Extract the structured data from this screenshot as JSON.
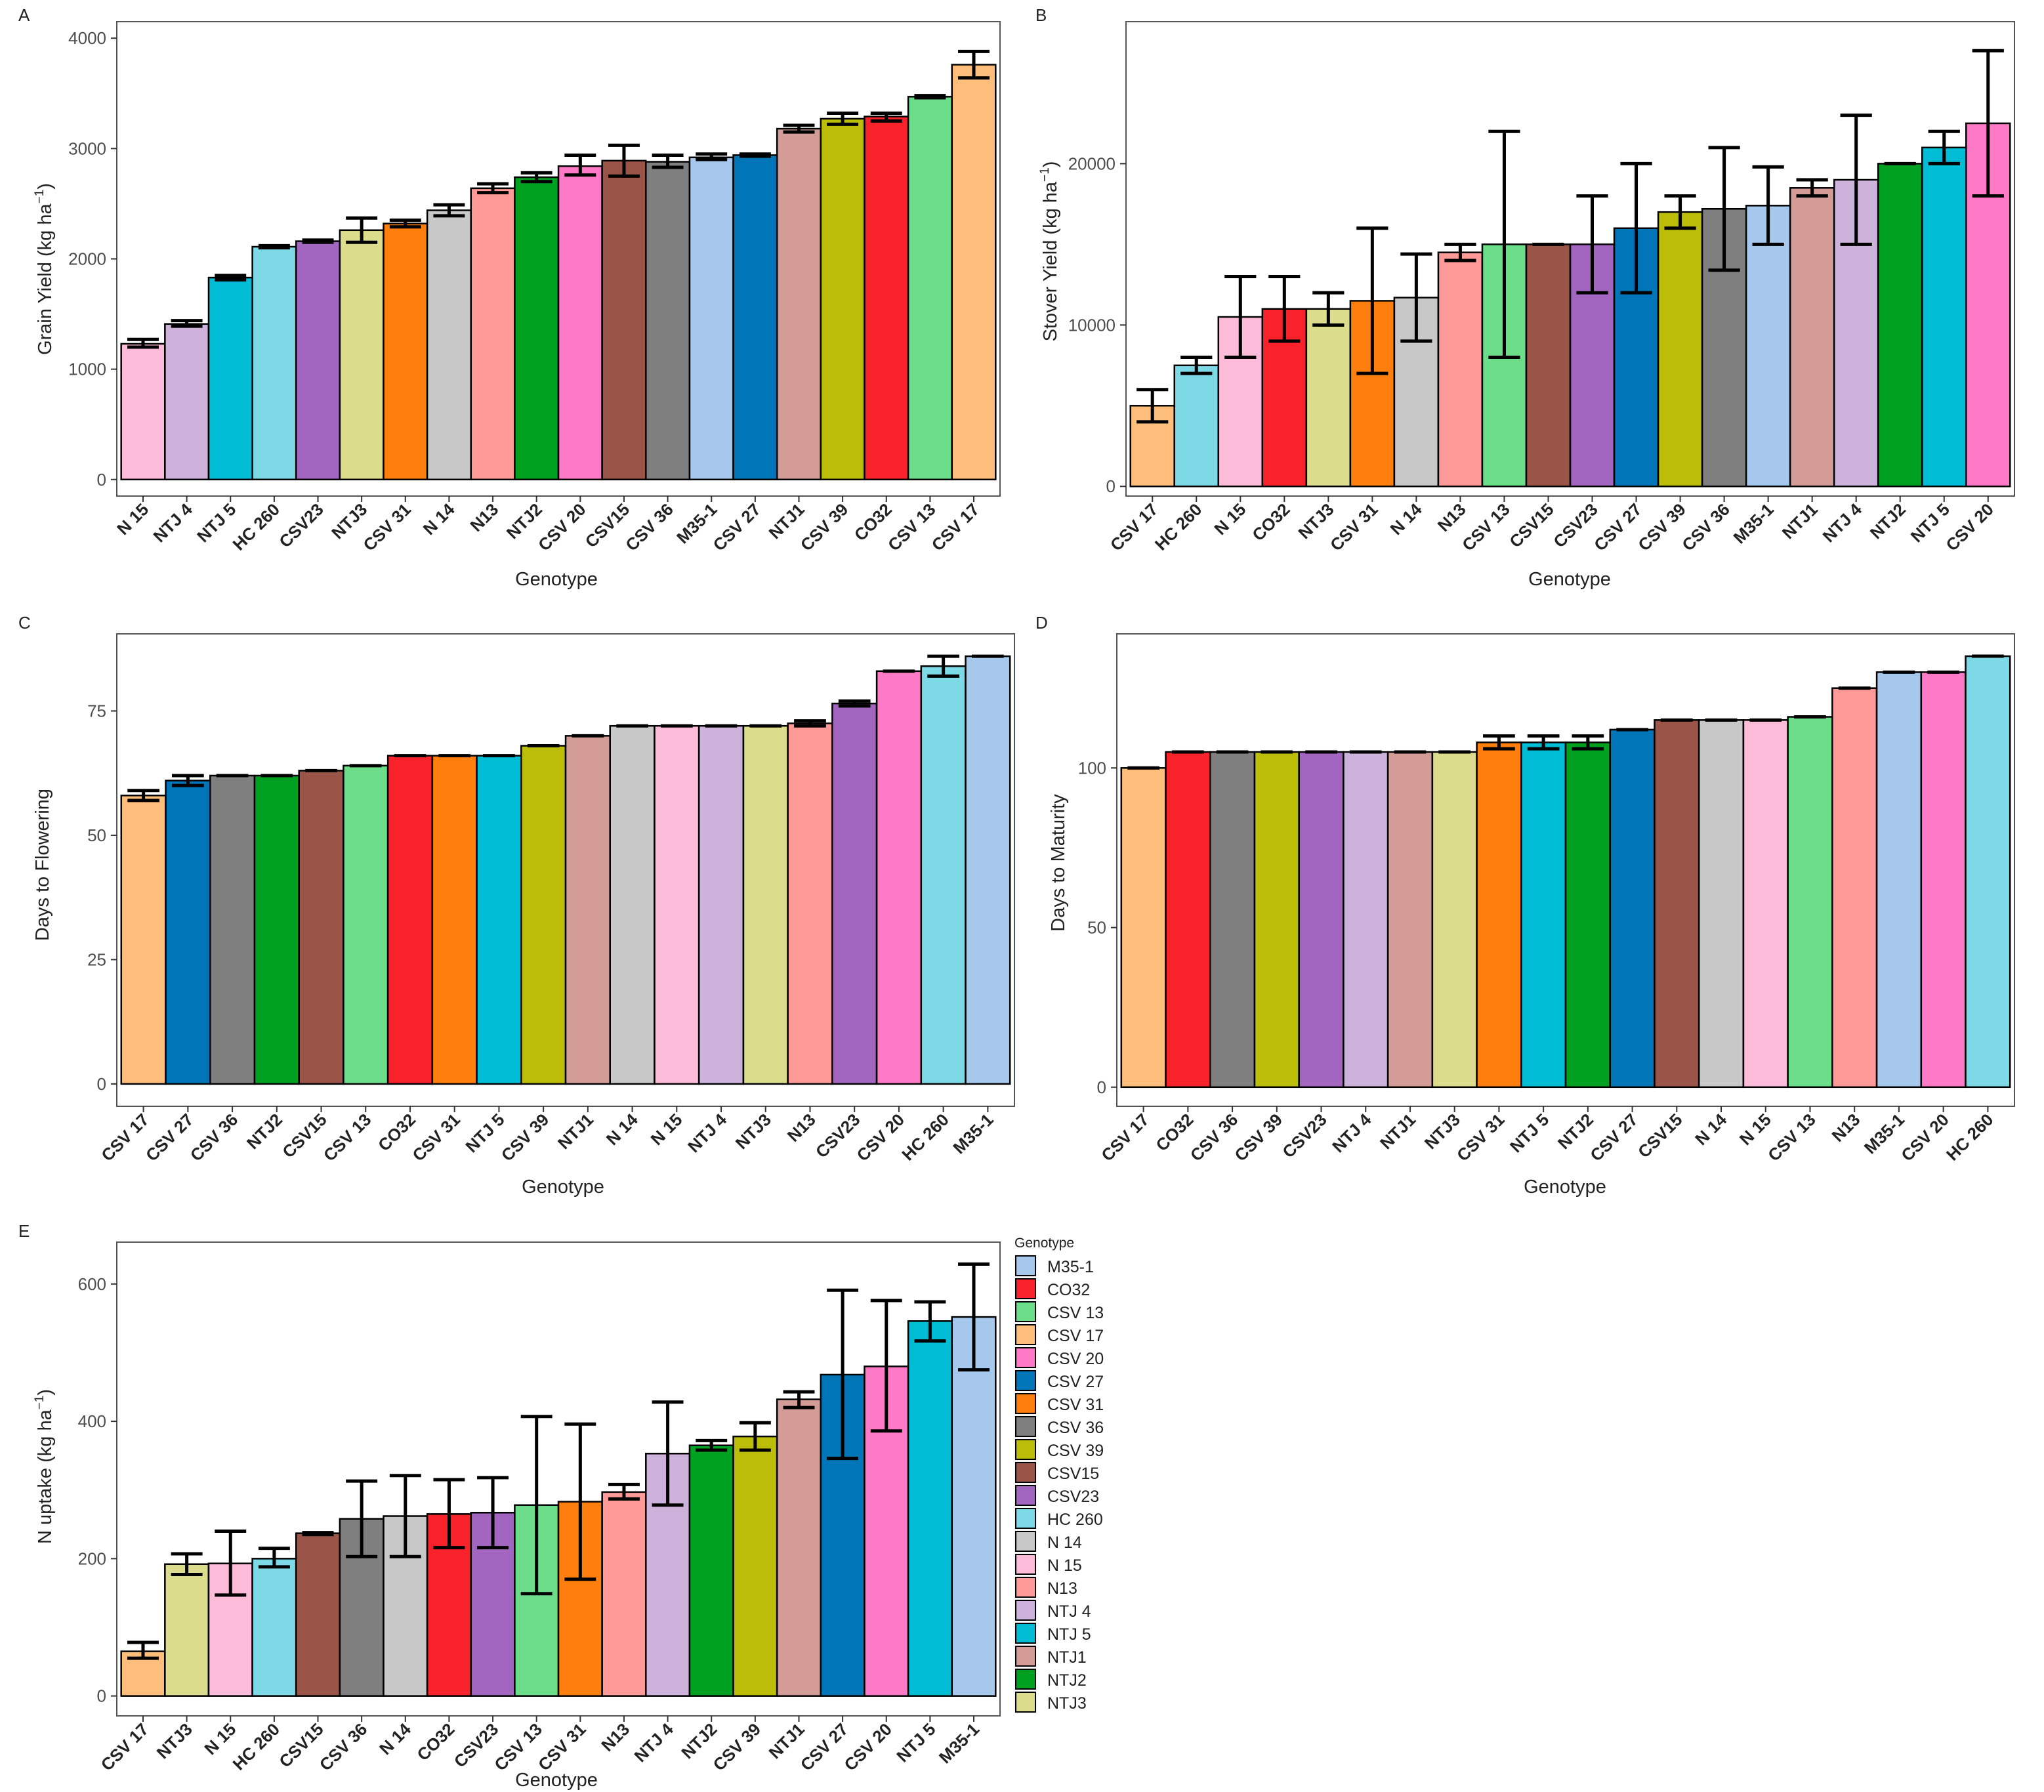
{
  "figure": {
    "x_axis_title": "Genotype"
  },
  "legend": {
    "title": "Genotype",
    "items": [
      {
        "label": " M35-1",
        "color": "#A6C8EC"
      },
      {
        "label": "CO32",
        "color": "#F8232A"
      },
      {
        "label": "CSV 13",
        "color": "#6CDE8A"
      },
      {
        "label": "CSV 17",
        "color": "#FDBD7B"
      },
      {
        "label": "CSV 20",
        "color": "#FF7AC6"
      },
      {
        "label": "CSV 27",
        "color": "#0076B8"
      },
      {
        "label": "CSV 31",
        "color": "#FF7F0E"
      },
      {
        "label": "CSV 36",
        "color": "#7F7F7F"
      },
      {
        "label": "CSV 39",
        "color": "#BCBD08"
      },
      {
        "label": "CSV15",
        "color": "#9B5548"
      },
      {
        "label": "CSV23",
        "color": "#A366C0"
      },
      {
        "label": "HC 260",
        "color": "#7ED9E6"
      },
      {
        "label": "N 14",
        "color": "#C8C8C8"
      },
      {
        "label": "N 15",
        "color": "#FDBBDA"
      },
      {
        "label": "N13",
        "color": "#FF9A98"
      },
      {
        "label": "NTJ 4",
        "color": "#CDB3DB"
      },
      {
        "label": "NTJ 5",
        "color": "#00BCD4"
      },
      {
        "label": "NTJ1",
        "color": "#D49C96"
      },
      {
        "label": "NTJ2",
        "color": "#00A020"
      },
      {
        "label": "NTJ3",
        "color": "#DBDC8C"
      }
    ]
  },
  "chart_data": [
    {
      "panel": "A",
      "type": "bar",
      "ylabel_main": "Grain Yield (kg ha",
      "ylabel_sup": "−1",
      "ylabel_end": ")",
      "xlabel": "Genotype",
      "ylim": [
        -150,
        4150
      ],
      "yticks": [
        0,
        1000,
        2000,
        3000,
        4000
      ],
      "yticklabels": [
        "0",
        "1000",
        "2000",
        "3000",
        "4000"
      ],
      "categories": [
        "N 15",
        "NTJ 4",
        "NTJ 5",
        "HC 260",
        "CSV23",
        "NTJ3",
        "CSV 31",
        "N 14",
        "N13",
        "NTJ2",
        "CSV 20",
        "CSV15",
        "CSV 36",
        "M35-1",
        "CSV 27",
        "NTJ1",
        "CSV 39",
        "CO32",
        "CSV 13",
        "CSV 17"
      ],
      "values": [
        1230,
        1410,
        1830,
        2110,
        2160,
        2260,
        2320,
        2440,
        2640,
        2740,
        2840,
        2890,
        2880,
        2920,
        2940,
        3180,
        3270,
        3290,
        3470,
        3760
      ],
      "err_low": [
        1200,
        1390,
        1810,
        2100,
        2150,
        2150,
        2290,
        2390,
        2600,
        2700,
        2760,
        2750,
        2830,
        2900,
        2930,
        3150,
        3220,
        3250,
        3460,
        3640
      ],
      "err_high": [
        1270,
        1440,
        1850,
        2120,
        2170,
        2370,
        2350,
        2490,
        2680,
        2780,
        2940,
        3030,
        2940,
        2950,
        2950,
        3210,
        3320,
        3320,
        3480,
        3880
      ]
    },
    {
      "panel": "B",
      "type": "bar",
      "ylabel_main": "Stover Yield (kg ha",
      "ylabel_sup": "−1",
      "ylabel_end": ")",
      "xlabel": "Genotype",
      "ylim": [
        -600,
        28800
      ],
      "yticks": [
        0,
        10000,
        20000
      ],
      "yticklabels": [
        "0",
        "10000",
        "20000"
      ],
      "categories": [
        "CSV 17",
        "HC 260",
        "N 15",
        "CO32",
        "NTJ3",
        "CSV 31",
        "N 14",
        "N13",
        "CSV 13",
        "CSV15",
        "CSV23",
        "CSV 27",
        "CSV 39",
        "CSV 36",
        "M35-1",
        "NTJ1",
        "NTJ 4",
        "NTJ2",
        "NTJ 5",
        "CSV 20"
      ],
      "values": [
        5000,
        7500,
        10500,
        11000,
        11000,
        11500,
        11700,
        14500,
        15000,
        15000,
        15000,
        16000,
        17000,
        17200,
        17400,
        18500,
        19000,
        20000,
        21000,
        22500
      ],
      "err_low": [
        4000,
        7000,
        8000,
        9000,
        10000,
        7000,
        9000,
        14000,
        8000,
        15000,
        12000,
        12000,
        16000,
        13400,
        15000,
        18000,
        15000,
        20000,
        20000,
        18000
      ],
      "err_high": [
        6000,
        8000,
        13000,
        13000,
        12000,
        16000,
        14400,
        15000,
        22000,
        15000,
        18000,
        20000,
        18000,
        21000,
        19800,
        19000,
        23000,
        20000,
        22000,
        27000
      ]
    },
    {
      "panel": "C",
      "type": "bar",
      "ylabel_main": "Days to Flowering",
      "ylabel_sup": "",
      "ylabel_end": "",
      "xlabel": "Genotype",
      "ylim": [
        -4.5,
        90.5
      ],
      "yticks": [
        0,
        25,
        50,
        75
      ],
      "yticklabels": [
        "0",
        "25",
        "50",
        "75"
      ],
      "categories": [
        "CSV 17",
        "CSV 27",
        "CSV 36",
        "NTJ2",
        "CSV15",
        "CSV 13",
        "CO32",
        "CSV 31",
        "NTJ 5",
        "CSV 39",
        "NTJ1",
        "N 14",
        "N 15",
        "NTJ 4",
        "NTJ3",
        "N13",
        "CSV23",
        "CSV 20",
        "HC 260",
        "M35-1"
      ],
      "values": [
        58,
        61,
        62,
        62,
        63,
        64,
        66,
        66,
        66,
        68,
        70,
        72,
        72,
        72,
        72,
        72.5,
        76.5,
        83,
        84,
        86
      ],
      "err_low": [
        57,
        60,
        62,
        62,
        63,
        64,
        66,
        66,
        66,
        68,
        70,
        72,
        72,
        72,
        72,
        72,
        76,
        83,
        82,
        86
      ],
      "err_high": [
        59,
        62,
        62,
        62,
        63,
        64,
        66,
        66,
        66,
        68,
        70,
        72,
        72,
        72,
        72,
        73,
        77,
        83,
        86,
        86
      ]
    },
    {
      "panel": "D",
      "type": "bar",
      "ylabel_main": "Days to Maturity",
      "ylabel_sup": "",
      "ylabel_end": "",
      "xlabel": "Genotype",
      "ylim": [
        -6,
        142
      ],
      "yticks": [
        0,
        50,
        100
      ],
      "yticklabels": [
        "0",
        "50",
        "100"
      ],
      "categories": [
        "CSV 17",
        "CO32",
        "CSV 36",
        "CSV 39",
        "CSV23",
        "NTJ 4",
        "NTJ1",
        "NTJ3",
        "CSV 31",
        "NTJ 5",
        "NTJ2",
        "CSV 27",
        "CSV15",
        "N 14",
        "N 15",
        "CSV 13",
        "N13",
        "M35-1",
        "CSV 20",
        "HC 260"
      ],
      "values": [
        100,
        105,
        105,
        105,
        105,
        105,
        105,
        105,
        108,
        108,
        108,
        112,
        115,
        115,
        115,
        116,
        125,
        130,
        130,
        135
      ],
      "err_low": [
        100,
        105,
        105,
        105,
        105,
        105,
        105,
        105,
        106,
        106,
        106,
        112,
        115,
        115,
        115,
        116,
        125,
        130,
        130,
        135
      ],
      "err_high": [
        100,
        105,
        105,
        105,
        105,
        105,
        105,
        105,
        110,
        110,
        110,
        112,
        115,
        115,
        115,
        116,
        125,
        130,
        130,
        135
      ]
    },
    {
      "panel": "E",
      "type": "bar",
      "ylabel_main": "N uptake (kg ha",
      "ylabel_sup": "−1",
      "ylabel_end": ")",
      "xlabel": "Genotype",
      "ylim": [
        -29,
        661
      ],
      "yticks": [
        0,
        200,
        400,
        600
      ],
      "yticklabels": [
        "0",
        "200",
        "400",
        "600"
      ],
      "categories": [
        "CSV 17",
        "NTJ3",
        "N 15",
        "HC 260",
        "CSV15",
        "CSV 36",
        "N 14",
        "CO32",
        "CSV23",
        "CSV 13",
        "CSV 31",
        "N13",
        "NTJ 4",
        "NTJ2",
        "CSV 39",
        "NTJ1",
        "CSV 27",
        "CSV 20",
        "NTJ 5",
        "M35-1"
      ],
      "values": [
        65,
        192,
        193,
        200,
        237,
        258,
        262,
        265,
        267,
        278,
        283,
        297,
        353,
        365,
        378,
        432,
        468,
        480,
        546,
        552
      ],
      "err_low": [
        55,
        177,
        147,
        188,
        235,
        203,
        203,
        216,
        216,
        149,
        170,
        287,
        278,
        358,
        358,
        420,
        346,
        386,
        517,
        475
      ],
      "err_high": [
        78,
        207,
        240,
        215,
        238,
        313,
        321,
        315,
        318,
        407,
        396,
        308,
        428,
        372,
        398,
        443,
        591,
        576,
        574,
        629
      ]
    }
  ]
}
